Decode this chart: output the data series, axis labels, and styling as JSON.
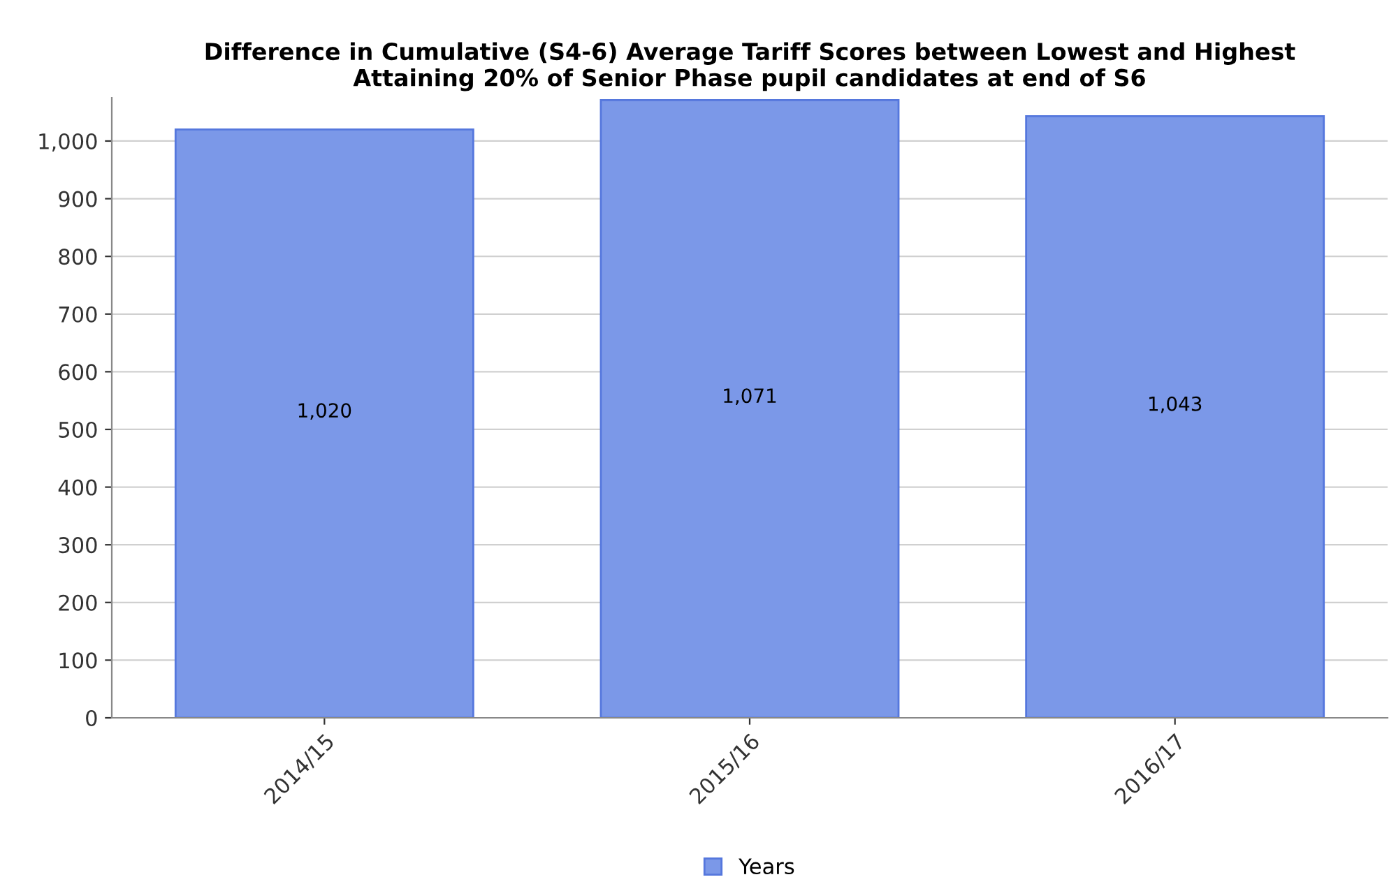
{
  "chart_data": {
    "type": "bar",
    "title": "Difference in Cumulative (S4-6) Average Tariff Scores between Lowest and Highest\nAttaining 20% of Senior Phase pupil candidates at end of S6",
    "categories": [
      "2014/15",
      "2015/16",
      "2016/17"
    ],
    "series": [
      {
        "name": "Years",
        "color": "#7b98e8",
        "values": [
          1020,
          1071,
          1043
        ]
      }
    ],
    "value_labels": [
      "1,020",
      "1,071",
      "1,043"
    ],
    "ylim": [
      0,
      1075
    ],
    "yticks": [
      0,
      100,
      200,
      300,
      400,
      500,
      600,
      700,
      800,
      900,
      {
        "value": 1000,
        "label": "1,000"
      }
    ],
    "grid": "y",
    "legend": "bottom"
  }
}
